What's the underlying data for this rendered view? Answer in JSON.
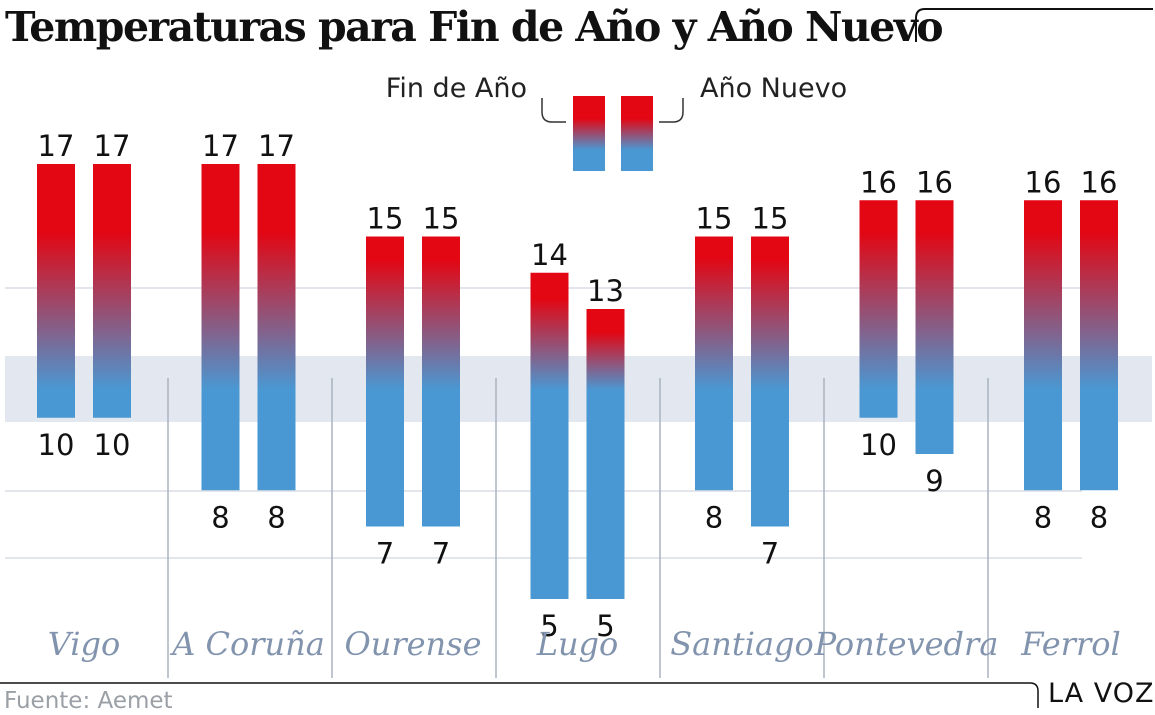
{
  "chart_data": {
    "type": "bar",
    "title": "Temperaturas para Fin de Año y Año Nuevo",
    "subtype": "floating range bars (max to min)",
    "categories": [
      "Vigo",
      "A Coruña",
      "Ourense",
      "Lugo",
      "Santiago",
      "Pontevedra",
      "Ferrol"
    ],
    "series": [
      {
        "name": "Fin de Año",
        "max": [
          17,
          17,
          15,
          14,
          15,
          16,
          16
        ],
        "min": [
          10,
          8,
          7,
          5,
          8,
          10,
          8
        ]
      },
      {
        "name": "Año Nuevo",
        "max": [
          17,
          17,
          15,
          13,
          15,
          16,
          16
        ],
        "min": [
          10,
          8,
          7,
          5,
          7,
          9,
          8
        ]
      }
    ],
    "ylim": [
      5,
      17
    ],
    "grid": true,
    "highlight_band": [
      10,
      12
    ],
    "legend_position": "top-center",
    "colors": {
      "warm": "#e30613",
      "cold": "#4a98d3",
      "band": "#e3e7ef",
      "grid": "#d9dee6",
      "separator": "#aab3c0",
      "city": "#8294ad"
    }
  },
  "source": "Fuente: Aemet",
  "brand": "LA VOZ"
}
